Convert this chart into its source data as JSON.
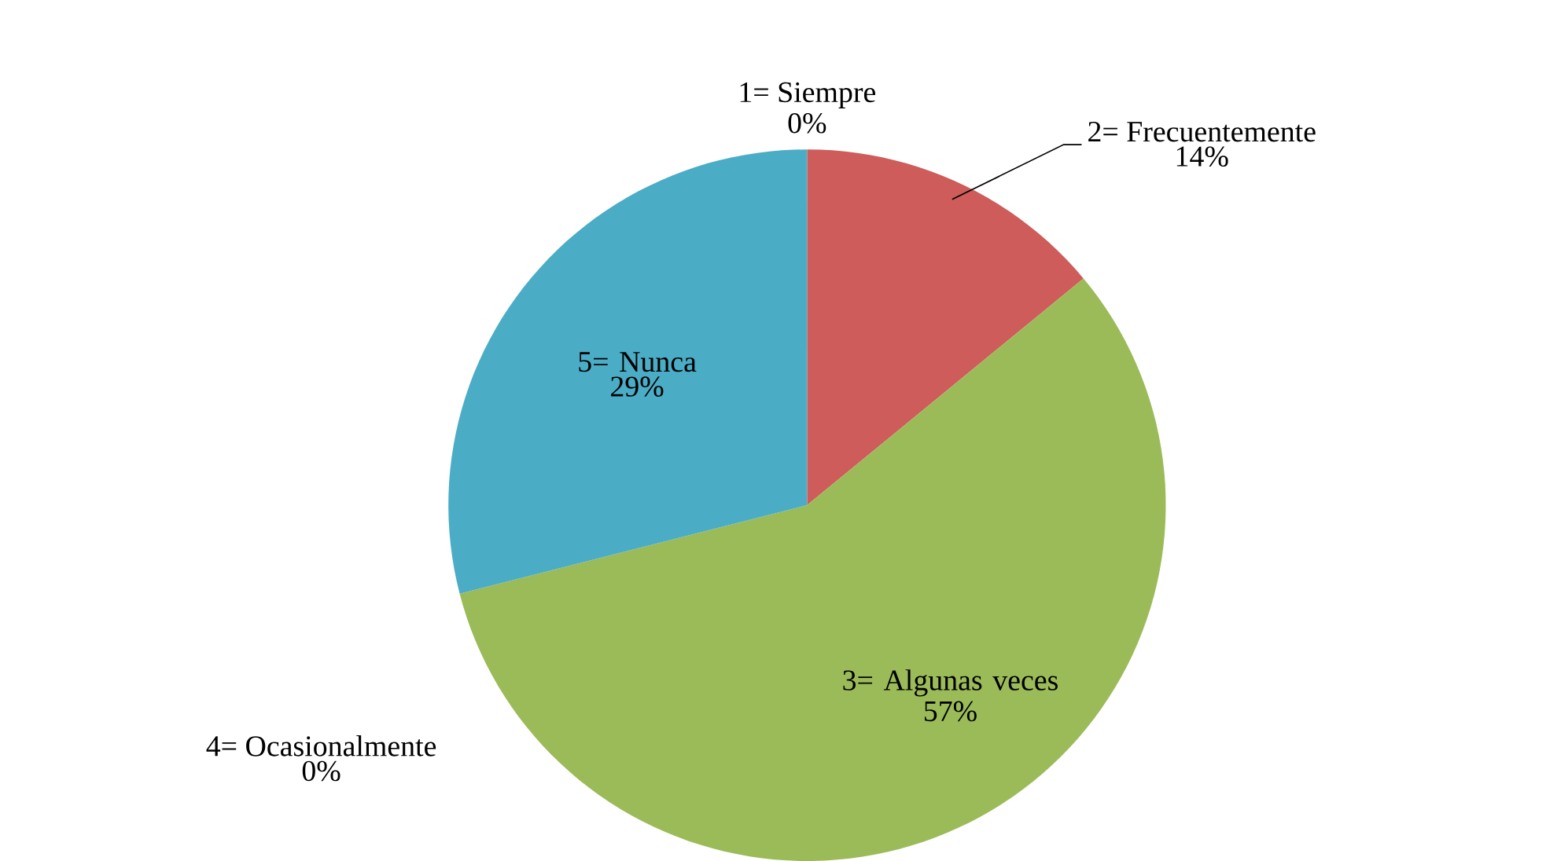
{
  "chart_data": {
    "type": "pie",
    "categories": [
      "1= Siempre",
      "2= Frecuentemente",
      "3= Algunas veces",
      "4= Ocasionalmente",
      "5= Nunca"
    ],
    "values": [
      0,
      14,
      57,
      0,
      29
    ],
    "colors": [
      "#4f81bd",
      "#cd5c5a",
      "#9bbb59",
      "#8064a2",
      "#4bacc6"
    ],
    "value_labels": [
      "0%",
      "14%",
      "57%",
      "0%",
      "29%"
    ]
  }
}
